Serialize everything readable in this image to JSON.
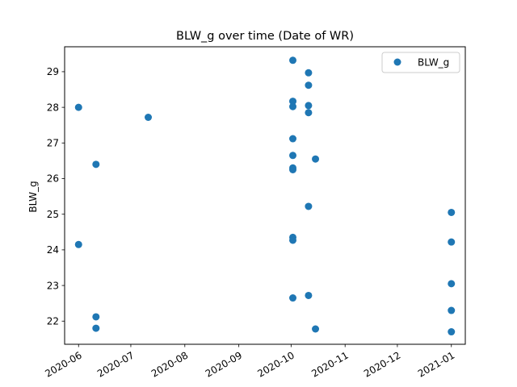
{
  "chart_data": {
    "type": "scatter",
    "title": "BLW_g over time (Date of WR)",
    "xlabel": "",
    "ylabel": "BLW_g",
    "marker_color": "#1f77b4",
    "grid": false,
    "legend_placement": "top-right",
    "x_type": "date",
    "xlim": [
      "2020-05-24",
      "2021-01-09"
    ],
    "ylim": [
      21.35,
      29.7
    ],
    "x_ticks": [
      "2020-06-01",
      "2020-07-01",
      "2020-08-01",
      "2020-09-01",
      "2020-10-01",
      "2020-11-01",
      "2020-12-01",
      "2021-01-01"
    ],
    "x_tick_labels": [
      "2020-06",
      "2020-07",
      "2020-08",
      "2020-09",
      "2020-10",
      "2020-11",
      "2020-12",
      "2021-01"
    ],
    "y_ticks": [
      22,
      23,
      24,
      25,
      26,
      27,
      28,
      29
    ],
    "y_tick_labels": [
      "22",
      "23",
      "24",
      "25",
      "26",
      "27",
      "28",
      "29"
    ],
    "series": [
      {
        "name": "BLW_g",
        "points": [
          {
            "x": "2020-06-01",
            "y": 28.0
          },
          {
            "x": "2020-06-01",
            "y": 24.15
          },
          {
            "x": "2020-06-11",
            "y": 26.4
          },
          {
            "x": "2020-06-11",
            "y": 22.12
          },
          {
            "x": "2020-06-11",
            "y": 21.8
          },
          {
            "x": "2020-07-11",
            "y": 27.72
          },
          {
            "x": "2020-10-02",
            "y": 29.32
          },
          {
            "x": "2020-10-02",
            "y": 28.17
          },
          {
            "x": "2020-10-02",
            "y": 28.02
          },
          {
            "x": "2020-10-02",
            "y": 27.12
          },
          {
            "x": "2020-10-02",
            "y": 26.65
          },
          {
            "x": "2020-10-02",
            "y": 26.3
          },
          {
            "x": "2020-10-02",
            "y": 26.25
          },
          {
            "x": "2020-10-02",
            "y": 24.35
          },
          {
            "x": "2020-10-02",
            "y": 24.27
          },
          {
            "x": "2020-10-02",
            "y": 22.65
          },
          {
            "x": "2020-10-11",
            "y": 28.97
          },
          {
            "x": "2020-10-11",
            "y": 28.62
          },
          {
            "x": "2020-10-11",
            "y": 28.05
          },
          {
            "x": "2020-10-11",
            "y": 27.85
          },
          {
            "x": "2020-10-11",
            "y": 25.22
          },
          {
            "x": "2020-10-11",
            "y": 22.72
          },
          {
            "x": "2020-10-15",
            "y": 26.55
          },
          {
            "x": "2020-10-15",
            "y": 21.78
          },
          {
            "x": "2021-01-01",
            "y": 25.05
          },
          {
            "x": "2021-01-01",
            "y": 24.22
          },
          {
            "x": "2021-01-01",
            "y": 23.05
          },
          {
            "x": "2021-01-01",
            "y": 22.3
          },
          {
            "x": "2021-01-01",
            "y": 21.7
          }
        ]
      }
    ]
  }
}
